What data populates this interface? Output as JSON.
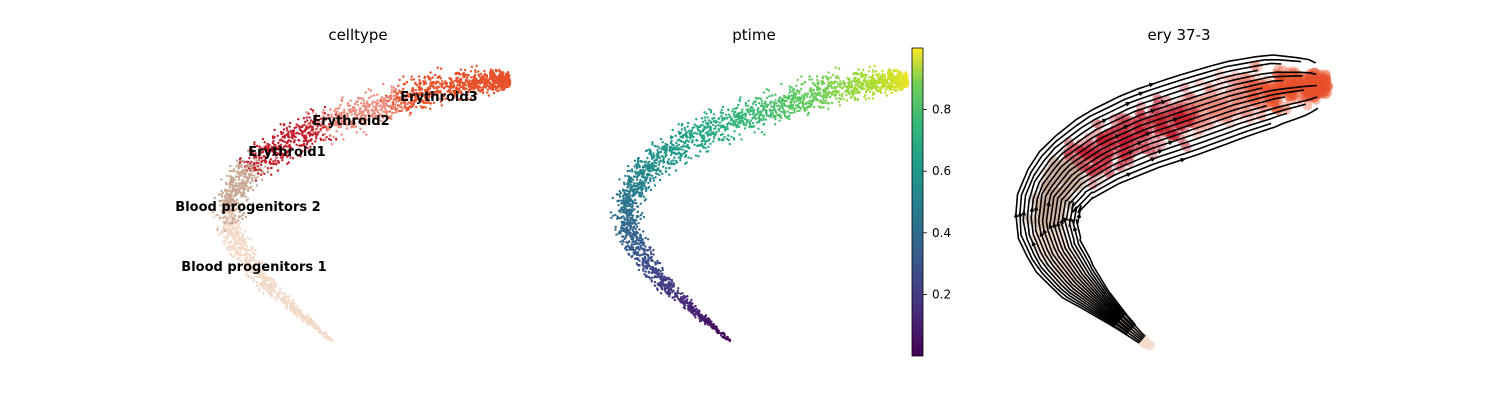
{
  "chart_data": [
    {
      "type": "scatter",
      "title": "celltype",
      "xlabel": "",
      "ylabel": "",
      "axes": "off",
      "grid": false,
      "legend": "on data",
      "categories": [
        "Blood progenitors 1",
        "Blood progenitors 2",
        "Erythroid1",
        "Erythroid2",
        "Erythroid3"
      ],
      "colors": {
        "Blood progenitors 1": "#f3d9c8",
        "Blood progenitors 2": "#c9a994",
        "Erythroid1": "#c41e2a",
        "Erythroid2": "#ef8a7a",
        "Erythroid3": "#e8512a"
      }
    },
    {
      "type": "scatter",
      "title": "ptime",
      "xlabel": "",
      "ylabel": "",
      "axes": "off",
      "grid": false,
      "colormap": "viridis",
      "colorbar": {
        "range": [
          0.0,
          1.0
        ],
        "ticks": [
          "0.2",
          "0.4",
          "0.6",
          "0.8"
        ],
        "tick_values": [
          0.2,
          0.4,
          0.6,
          0.8
        ]
      }
    },
    {
      "type": "scatter",
      "title": "ery 37-3",
      "xlabel": "",
      "ylabel": "",
      "axes": "off",
      "grid": false,
      "overlay": "velocity streamlines (black, with arrowheads)",
      "colors": [
        "#f3d9c8",
        "#c9a994",
        "#c41e2a",
        "#ef8a7a",
        "#e8512a"
      ]
    }
  ]
}
